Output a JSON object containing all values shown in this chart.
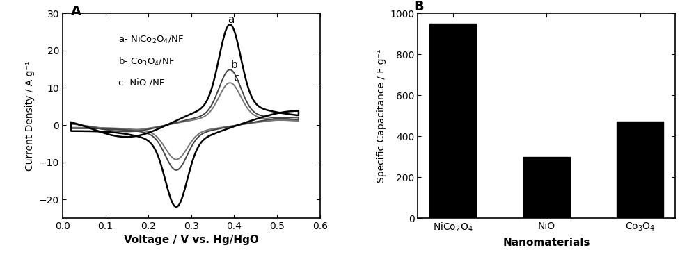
{
  "panel_A_label": "A",
  "panel_B_label": "B",
  "cv_xlim": [
    0.0,
    0.6
  ],
  "cv_ylim": [
    -25,
    30
  ],
  "cv_xticks": [
    0.0,
    0.1,
    0.2,
    0.3,
    0.4,
    0.5,
    0.6
  ],
  "cv_yticks": [
    -20,
    -10,
    0,
    10,
    20,
    30
  ],
  "cv_xlabel": "Voltage / V vs. Hg/HgO",
  "cv_ylabel": "Current Density / A g⁻¹",
  "bar_categories": [
    "NiCo₂O₄",
    "NiO",
    "Co₃O₄"
  ],
  "bar_values": [
    950,
    300,
    470
  ],
  "bar_color": "#000000",
  "bar_xlabel": "Nanomaterials",
  "bar_ylabel": "Specific Capacitance / F g⁻¹",
  "bar_ylim": [
    0,
    1000
  ],
  "bar_yticks": [
    0,
    200,
    400,
    600,
    800,
    1000
  ],
  "line_color_a": "#000000",
  "line_color_b": "#444444",
  "line_color_c": "#777777",
  "background_color": "#ffffff",
  "peak_a_anodic": 27.0,
  "peak_a_cathodic": -22.0,
  "scale_b": 0.55,
  "scale_c": 0.42
}
